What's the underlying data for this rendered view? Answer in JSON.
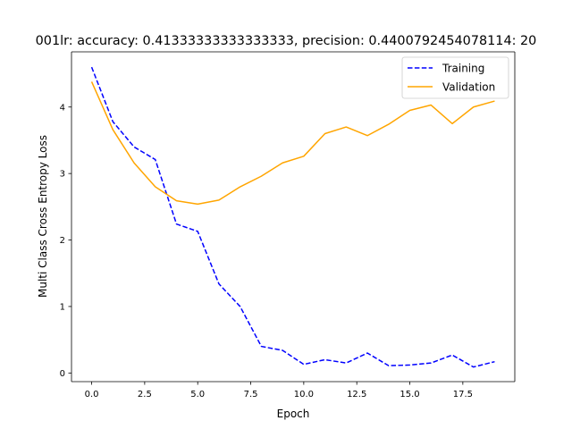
{
  "chart_data": {
    "type": "line",
    "title": "001lr: accuracy: 0.41333333333333333, precision: 0.4400792454078114: 20",
    "xlabel": "Epoch",
    "ylabel": "Multi Class Cross Entropy Loss",
    "xlim": [
      -0.95,
      19.95
    ],
    "ylim": [
      -0.13,
      4.83
    ],
    "x_ticks": [
      0,
      2.5,
      5,
      7.5,
      10,
      12.5,
      15,
      17.5
    ],
    "x_tick_labels": [
      "0.0",
      "2.5",
      "5.0",
      "7.5",
      "10.0",
      "12.5",
      "15.0",
      "17.5"
    ],
    "y_ticks": [
      0,
      1,
      2,
      3,
      4
    ],
    "y_tick_labels": [
      "0",
      "1",
      "2",
      "3",
      "4"
    ],
    "grid": false,
    "legend_position": "top-right",
    "x": [
      0,
      1,
      2,
      3,
      4,
      5,
      6,
      7,
      8,
      9,
      10,
      11,
      12,
      13,
      14,
      15,
      16,
      17,
      18,
      19
    ],
    "series": [
      {
        "name": "Training",
        "color": "#0000ff",
        "dash": "dashed",
        "values": [
          4.6,
          3.78,
          3.4,
          3.21,
          2.24,
          2.13,
          1.34,
          1.0,
          0.4,
          0.34,
          0.13,
          0.2,
          0.15,
          0.3,
          0.11,
          0.12,
          0.15,
          0.27,
          0.09,
          0.17
        ]
      },
      {
        "name": "Validation",
        "color": "#ffa500",
        "dash": "solid",
        "values": [
          4.38,
          3.66,
          3.16,
          2.8,
          2.59,
          2.54,
          2.6,
          2.8,
          2.96,
          3.16,
          3.26,
          3.6,
          3.7,
          3.57,
          3.74,
          3.95,
          4.03,
          3.75,
          4.0,
          4.09
        ]
      }
    ]
  }
}
